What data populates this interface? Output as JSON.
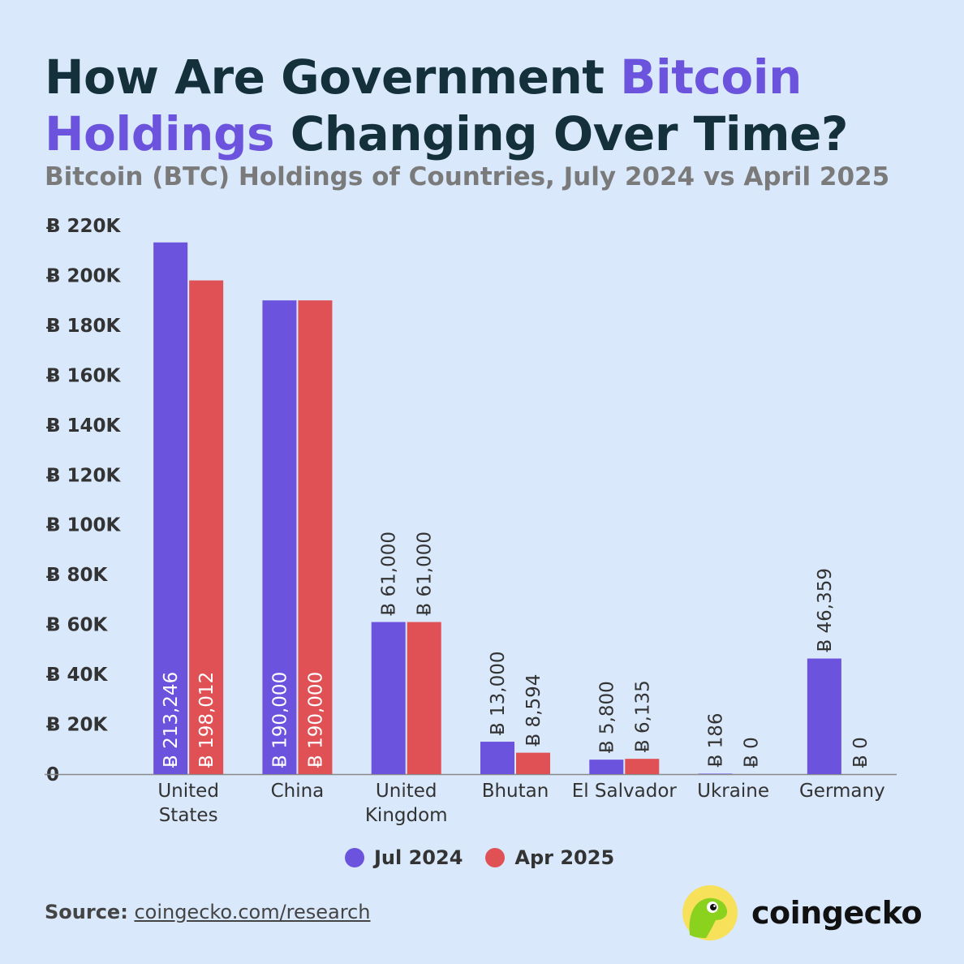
{
  "title": {
    "part1": "How Are Government ",
    "highlight1": "Bitcoin",
    "highlight2": "Holdings",
    "part2": " Changing Over Time?"
  },
  "subtitle": "Bitcoin (BTC) Holdings of Countries, July 2024 vs April 2025",
  "colors": {
    "background": "#d9e8fb",
    "accent": "#6b53dd",
    "series1": "#6b53dd",
    "series2": "#e05156",
    "title": "#14303a",
    "subtitle": "#7a7a7a"
  },
  "chart_data": {
    "type": "bar",
    "categories": [
      [
        "United",
        "States"
      ],
      [
        "China"
      ],
      [
        "United",
        "Kingdom"
      ],
      [
        "Bhutan"
      ],
      [
        "El Salvador"
      ],
      [
        "Ukraine"
      ],
      [
        "Germany"
      ]
    ],
    "series": [
      {
        "name": "Jul 2024",
        "color": "#6b53dd",
        "values": [
          213246,
          190000,
          61000,
          13000,
          5800,
          186,
          46359
        ],
        "labels": [
          "Ƀ 213,246",
          "Ƀ 190,000",
          "Ƀ 61,000",
          "Ƀ 13,000",
          "Ƀ 5,800",
          "Ƀ 186",
          "Ƀ 46,359"
        ]
      },
      {
        "name": "Apr 2025",
        "color": "#e05156",
        "values": [
          198012,
          190000,
          61000,
          8594,
          6135,
          0,
          0
        ],
        "labels": [
          "Ƀ 198,012",
          "Ƀ 190,000",
          "Ƀ 61,000",
          "Ƀ 8,594",
          "Ƀ 6,135",
          "Ƀ 0",
          "Ƀ 0"
        ]
      }
    ],
    "ylim": [
      0,
      220000
    ],
    "yticks": [
      {
        "value": 220000,
        "label": "Ƀ 220K"
      },
      {
        "value": 200000,
        "label": "Ƀ 200K"
      },
      {
        "value": 180000,
        "label": "Ƀ 180K"
      },
      {
        "value": 160000,
        "label": "Ƀ 160K"
      },
      {
        "value": 140000,
        "label": "Ƀ 140K"
      },
      {
        "value": 120000,
        "label": "Ƀ 120K"
      },
      {
        "value": 100000,
        "label": "Ƀ 100K"
      },
      {
        "value": 80000,
        "label": "Ƀ 80K"
      },
      {
        "value": 60000,
        "label": "Ƀ 60K"
      },
      {
        "value": 40000,
        "label": "Ƀ 40K"
      },
      {
        "value": 20000,
        "label": "Ƀ 20K"
      },
      {
        "value": 0,
        "label": "0"
      }
    ],
    "grid": false,
    "legend_position": "bottom"
  },
  "legend": [
    {
      "label": "Jul 2024",
      "color": "#6b53dd"
    },
    {
      "label": "Apr 2025",
      "color": "#e05156"
    }
  ],
  "source": {
    "label": "Source:",
    "link": "coingecko.com/research"
  },
  "brand": {
    "name": "coingecko",
    "logo_icon": "gecko-logo-icon"
  }
}
